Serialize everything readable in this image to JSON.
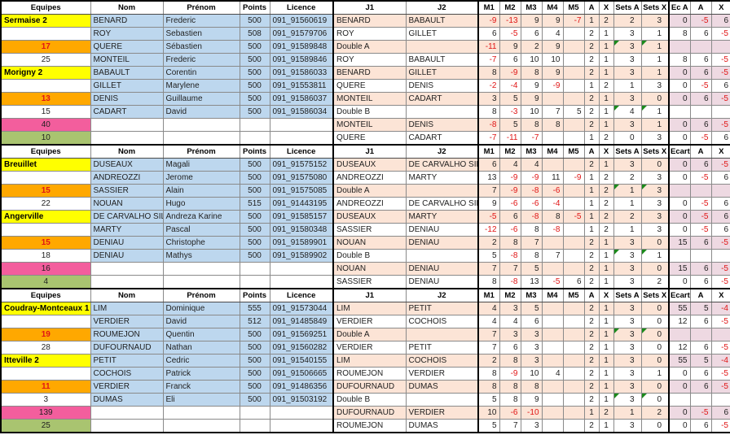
{
  "table": {
    "columns": [
      "Equipes",
      "Nom",
      "Prénom",
      "Points",
      "Licence",
      "J1",
      "J2",
      "M1",
      "M2",
      "M3",
      "M4",
      "M5",
      "A",
      "X",
      "Sets A",
      "Sets X",
      "ECART",
      "A",
      "X"
    ],
    "colors": {
      "team_bg": "#ffff00",
      "orange_bg": "#ffa800",
      "pink_bg": "#f35e9d",
      "green_bg": "#a9c470",
      "player_bg": "#bdd7ee",
      "match_bg": "#fce4d6",
      "ecart_tint_bg": "#eed9e2",
      "negative_text": "#e01515",
      "triangle": "#1b8a1b"
    },
    "sections": [
      {
        "ecart_label": "Ec A",
        "rows": [
          {
            "eq": "Sermaise 2",
            "eqs": "team",
            "nom": "BENARD",
            "pre": "Frederic",
            "pts": "500",
            "lic": "091_91560619",
            "j1": "BENARD",
            "j2": "BABAULT",
            "m": [
              "-9",
              "-13",
              "9",
              "9",
              "-7"
            ],
            "a": "1",
            "x": "2",
            "sa": "2",
            "sx": "3",
            "ec": "0",
            "a2": "-5",
            "x2": "6",
            "shade": "peach",
            "tri": false
          },
          {
            "eq": "",
            "eqs": "blank",
            "nom": "ROY",
            "pre": "Sebastien",
            "pts": "508",
            "lic": "091_91579706",
            "j1": "ROY",
            "j2": "GILLET",
            "m": [
              "6",
              "-5",
              "6",
              "4",
              ""
            ],
            "a": "2",
            "x": "1",
            "sa": "3",
            "sx": "1",
            "ec": "8",
            "a2": "6",
            "x2": "-5",
            "shade": "white",
            "tri": false
          },
          {
            "eq": "17",
            "eqs": "orange",
            "nom": "QUERE",
            "pre": "Sébastien",
            "pts": "500",
            "lic": "091_91589848",
            "j1": "Double A",
            "j2": "",
            "m": [
              "-11",
              "9",
              "2",
              "9",
              ""
            ],
            "a": "2",
            "x": "1",
            "sa": "3",
            "sx": "1",
            "ec": "",
            "a2": "",
            "x2": "",
            "shade": "peach",
            "tri": true
          },
          {
            "eq": "25",
            "eqs": "num",
            "nom": "MONTEIL",
            "pre": "Frederic",
            "pts": "500",
            "lic": "091_91589846",
            "j1": "ROY",
            "j2": "BABAULT",
            "m": [
              "-7",
              "6",
              "10",
              "10",
              ""
            ],
            "a": "2",
            "x": "1",
            "sa": "3",
            "sx": "1",
            "ec": "8",
            "a2": "6",
            "x2": "-5",
            "shade": "white",
            "tri": false
          },
          {
            "eq": "Morigny 2",
            "eqs": "team",
            "nom": "BABAULT",
            "pre": "Corentin",
            "pts": "500",
            "lic": "091_91586033",
            "j1": "BENARD",
            "j2": "GILLET",
            "m": [
              "8",
              "-9",
              "8",
              "9",
              ""
            ],
            "a": "2",
            "x": "1",
            "sa": "3",
            "sx": "1",
            "ec": "0",
            "a2": "6",
            "x2": "-5",
            "shade": "peach",
            "tri": false
          },
          {
            "eq": "",
            "eqs": "blank",
            "nom": "GILLET",
            "pre": "Marylene",
            "pts": "500",
            "lic": "091_91553811",
            "j1": "QUERE",
            "j2": "DENIS",
            "m": [
              "-2",
              "-4",
              "9",
              "-9",
              ""
            ],
            "a": "1",
            "x": "2",
            "sa": "1",
            "sx": "3",
            "ec": "0",
            "a2": "-5",
            "x2": "6",
            "shade": "white",
            "tri": false
          },
          {
            "eq": "13",
            "eqs": "orange",
            "nom": "DENIS",
            "pre": "Guillaume",
            "pts": "500",
            "lic": "091_91586037",
            "j1": "MONTEIL",
            "j2": "CADART",
            "m": [
              "3",
              "5",
              "9",
              "",
              ""
            ],
            "a": "2",
            "x": "1",
            "sa": "3",
            "sx": "0",
            "ec": "0",
            "a2": "6",
            "x2": "-5",
            "shade": "peach",
            "tri": false
          },
          {
            "eq": "15",
            "eqs": "num",
            "nom": "CADART",
            "pre": "David",
            "pts": "500",
            "lic": "091_91586034",
            "j1": "Double B",
            "j2": "",
            "m": [
              "8",
              "-3",
              "10",
              "7",
              "5"
            ],
            "a": "2",
            "x": "1",
            "sa": "4",
            "sx": "1",
            "ec": "",
            "a2": "",
            "x2": "",
            "shade": "white",
            "tri": true
          },
          {
            "eq": "40",
            "eqs": "pink",
            "nom": "",
            "pre": "",
            "pts": "",
            "lic": "",
            "j1": "MONTEIL",
            "j2": "DENIS",
            "m": [
              "-8",
              "5",
              "8",
              "8",
              ""
            ],
            "a": "2",
            "x": "1",
            "sa": "3",
            "sx": "1",
            "ec": "0",
            "a2": "6",
            "x2": "-5",
            "shade": "peach",
            "tri": false
          },
          {
            "eq": "10",
            "eqs": "green",
            "nom": "",
            "pre": "",
            "pts": "",
            "lic": "",
            "j1": "QUERE",
            "j2": "CADART",
            "m": [
              "-7",
              "-11",
              "-7",
              "",
              ""
            ],
            "a": "1",
            "x": "2",
            "sa": "0",
            "sx": "3",
            "ec": "0",
            "a2": "-5",
            "x2": "6",
            "shade": "white",
            "tri": false
          }
        ]
      },
      {
        "ecart_label": "Ecart",
        "rows": [
          {
            "eq": "Breuillet",
            "eqs": "team",
            "nom": "DUSEAUX",
            "pre": "Magali",
            "pts": "500",
            "lic": "091_91575152",
            "j1": "DUSEAUX",
            "j2": "DE CARVALHO SILV",
            "m": [
              "6",
              "4",
              "4",
              "",
              ""
            ],
            "a": "2",
            "x": "1",
            "sa": "3",
            "sx": "0",
            "ec": "0",
            "a2": "6",
            "x2": "-5",
            "shade": "peach",
            "tri": false
          },
          {
            "eq": "",
            "eqs": "blank",
            "nom": "ANDREOZZI",
            "pre": "Jerome",
            "pts": "500",
            "lic": "091_91575080",
            "j1": "ANDREOZZI",
            "j2": "MARTY",
            "m": [
              "13",
              "-9",
              "-9",
              "11",
              "-9"
            ],
            "a": "1",
            "x": "2",
            "sa": "2",
            "sx": "3",
            "ec": "0",
            "a2": "-5",
            "x2": "6",
            "shade": "white",
            "tri": false
          },
          {
            "eq": "15",
            "eqs": "orange",
            "nom": "SASSIER",
            "pre": "Alain",
            "pts": "500",
            "lic": "091_91575085",
            "j1": "Double A",
            "j2": "",
            "m": [
              "7",
              "-9",
              "-8",
              "-6",
              ""
            ],
            "a": "1",
            "x": "2",
            "sa": "1",
            "sx": "3",
            "ec": "",
            "a2": "",
            "x2": "",
            "shade": "peach",
            "tri": true
          },
          {
            "eq": "22",
            "eqs": "num",
            "nom": "NOUAN",
            "pre": "Hugo",
            "pts": "515",
            "lic": "091_91443195",
            "j1": "ANDREOZZI",
            "j2": "DE CARVALHO SILV",
            "m": [
              "9",
              "-6",
              "-6",
              "-4",
              ""
            ],
            "a": "1",
            "x": "2",
            "sa": "1",
            "sx": "3",
            "ec": "0",
            "a2": "-5",
            "x2": "6",
            "shade": "white",
            "tri": false
          },
          {
            "eq": "Angerville",
            "eqs": "team",
            "nom": "DE CARVALHO SILV",
            "pre": "Andreza Karine",
            "pts": "500",
            "lic": "091_91585157",
            "j1": "DUSEAUX",
            "j2": "MARTY",
            "m": [
              "-5",
              "6",
              "-8",
              "8",
              "-5"
            ],
            "a": "1",
            "x": "2",
            "sa": "2",
            "sx": "3",
            "ec": "0",
            "a2": "-5",
            "x2": "6",
            "shade": "peach",
            "tri": false
          },
          {
            "eq": "",
            "eqs": "blank",
            "nom": "MARTY",
            "pre": "Pascal",
            "pts": "500",
            "lic": "091_91580348",
            "j1": "SASSIER",
            "j2": "DENIAU",
            "m": [
              "-12",
              "-6",
              "8",
              "-8",
              ""
            ],
            "a": "1",
            "x": "2",
            "sa": "1",
            "sx": "3",
            "ec": "0",
            "a2": "-5",
            "x2": "6",
            "shade": "white",
            "tri": false
          },
          {
            "eq": "15",
            "eqs": "orange",
            "nom": "DENIAU",
            "pre": "Christophe",
            "pts": "500",
            "lic": "091_91589901",
            "j1": "NOUAN",
            "j2": "DENIAU",
            "m": [
              "2",
              "8",
              "7",
              "",
              ""
            ],
            "a": "2",
            "x": "1",
            "sa": "3",
            "sx": "0",
            "ec": "15",
            "a2": "6",
            "x2": "-5",
            "shade": "peach",
            "tri": false
          },
          {
            "eq": "18",
            "eqs": "num",
            "nom": "DENIAU",
            "pre": "Mathys",
            "pts": "500",
            "lic": "091_91589902",
            "j1": "Double B",
            "j2": "",
            "m": [
              "5",
              "-8",
              "8",
              "7",
              ""
            ],
            "a": "2",
            "x": "1",
            "sa": "3",
            "sx": "1",
            "ec": "",
            "a2": "",
            "x2": "",
            "shade": "white",
            "tri": true
          },
          {
            "eq": "16",
            "eqs": "pink",
            "nom": "",
            "pre": "",
            "pts": "",
            "lic": "",
            "j1": "NOUAN",
            "j2": "DENIAU",
            "m": [
              "7",
              "7",
              "5",
              "",
              ""
            ],
            "a": "2",
            "x": "1",
            "sa": "3",
            "sx": "0",
            "ec": "15",
            "a2": "6",
            "x2": "-5",
            "shade": "peach",
            "tri": false
          },
          {
            "eq": "4",
            "eqs": "green",
            "nom": "",
            "pre": "",
            "pts": "",
            "lic": "",
            "j1": "SASSIER",
            "j2": "DENIAU",
            "m": [
              "8",
              "-8",
              "13",
              "-5",
              "6"
            ],
            "a": "2",
            "x": "1",
            "sa": "3",
            "sx": "2",
            "ec": "0",
            "a2": "6",
            "x2": "-5",
            "shade": "white",
            "tri": false
          }
        ]
      },
      {
        "ecart_label": "Ecart",
        "rows": [
          {
            "eq": "Coudray-Montceaux 1",
            "eqs": "team",
            "nom": "LIM",
            "pre": "Dominique",
            "pts": "555",
            "lic": "091_91573044",
            "j1": "LIM",
            "j2": "PETIT",
            "m": [
              "4",
              "3",
              "5",
              "",
              ""
            ],
            "a": "2",
            "x": "1",
            "sa": "3",
            "sx": "0",
            "ec": "55",
            "a2": "5",
            "x2": "-4",
            "shade": "peach",
            "tri": false
          },
          {
            "eq": "",
            "eqs": "blank",
            "nom": "VERDIER",
            "pre": "David",
            "pts": "512",
            "lic": "091_91485849",
            "j1": "VERDIER",
            "j2": "COCHOIS",
            "m": [
              "4",
              "4",
              "6",
              "",
              ""
            ],
            "a": "2",
            "x": "1",
            "sa": "3",
            "sx": "0",
            "ec": "12",
            "a2": "6",
            "x2": "-5",
            "shade": "white",
            "tri": false
          },
          {
            "eq": "19",
            "eqs": "orange",
            "nom": "ROUMEJON",
            "pre": "Quentin",
            "pts": "500",
            "lic": "091_91569251",
            "j1": "Double A",
            "j2": "",
            "m": [
              "7",
              "3",
              "3",
              "",
              ""
            ],
            "a": "2",
            "x": "1",
            "sa": "3",
            "sx": "0",
            "ec": "",
            "a2": "",
            "x2": "",
            "shade": "peach",
            "tri": true
          },
          {
            "eq": "28",
            "eqs": "num",
            "nom": "DUFOURNAUD",
            "pre": "Nathan",
            "pts": "500",
            "lic": "091_91560282",
            "j1": "VERDIER",
            "j2": "PETIT",
            "m": [
              "7",
              "6",
              "3",
              "",
              ""
            ],
            "a": "2",
            "x": "1",
            "sa": "3",
            "sx": "0",
            "ec": "12",
            "a2": "6",
            "x2": "-5",
            "shade": "white",
            "tri": false
          },
          {
            "eq": "Itteville 2",
            "eqs": "team",
            "nom": "PETIT",
            "pre": "Cedric",
            "pts": "500",
            "lic": "091_91540155",
            "j1": "LIM",
            "j2": "COCHOIS",
            "m": [
              "2",
              "8",
              "3",
              "",
              ""
            ],
            "a": "2",
            "x": "1",
            "sa": "3",
            "sx": "0",
            "ec": "55",
            "a2": "5",
            "x2": "-4",
            "shade": "peach",
            "tri": false
          },
          {
            "eq": "",
            "eqs": "blank",
            "nom": "COCHOIS",
            "pre": "Patrick",
            "pts": "500",
            "lic": "091_91506665",
            "j1": "ROUMEJON",
            "j2": "VERDIER",
            "m": [
              "8",
              "-9",
              "10",
              "4",
              ""
            ],
            "a": "2",
            "x": "1",
            "sa": "3",
            "sx": "1",
            "ec": "0",
            "a2": "6",
            "x2": "-5",
            "shade": "white",
            "tri": false
          },
          {
            "eq": "11",
            "eqs": "orange",
            "nom": "VERDIER",
            "pre": "Franck",
            "pts": "500",
            "lic": "091_91486356",
            "j1": "DUFOURNAUD",
            "j2": "DUMAS",
            "m": [
              "8",
              "8",
              "8",
              "",
              ""
            ],
            "a": "2",
            "x": "1",
            "sa": "3",
            "sx": "0",
            "ec": "0",
            "a2": "6",
            "x2": "-5",
            "shade": "peach",
            "tri": false
          },
          {
            "eq": "3",
            "eqs": "num",
            "nom": "DUMAS",
            "pre": "Eli",
            "pts": "500",
            "lic": "091_91503192",
            "j1": "Double B",
            "j2": "",
            "m": [
              "5",
              "8",
              "9",
              "",
              ""
            ],
            "a": "2",
            "x": "1",
            "sa": "3",
            "sx": "0",
            "ec": "",
            "a2": "",
            "x2": "",
            "shade": "white",
            "tri": true
          },
          {
            "eq": "139",
            "eqs": "pink",
            "nom": "",
            "pre": "",
            "pts": "",
            "lic": "",
            "j1": "DUFOURNAUD",
            "j2": "VERDIER",
            "m": [
              "10",
              "-6",
              "-10",
              "",
              ""
            ],
            "a": "1",
            "x": "2",
            "sa": "1",
            "sx": "2",
            "ec": "0",
            "a2": "-5",
            "x2": "6",
            "shade": "peach",
            "tri": false
          },
          {
            "eq": "25",
            "eqs": "green",
            "nom": "",
            "pre": "",
            "pts": "",
            "lic": "",
            "j1": "ROUMEJON",
            "j2": "DUMAS",
            "m": [
              "5",
              "7",
              "3",
              "",
              ""
            ],
            "a": "2",
            "x": "1",
            "sa": "3",
            "sx": "0",
            "ec": "0",
            "a2": "6",
            "x2": "-5",
            "shade": "white",
            "tri": false
          }
        ]
      }
    ]
  }
}
